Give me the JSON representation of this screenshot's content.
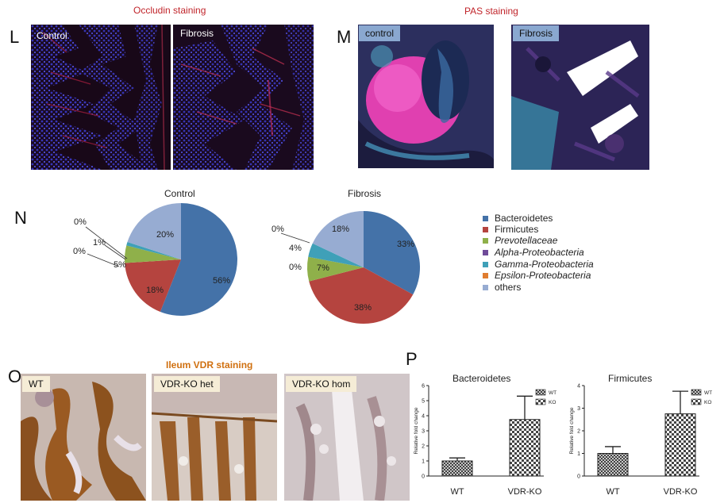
{
  "panel_L": {
    "letter": "L",
    "title": "Occludin staining",
    "images": [
      {
        "label": "Control"
      },
      {
        "label": "Fibrosis"
      }
    ]
  },
  "panel_M": {
    "letter": "M",
    "title": "PAS staining",
    "images": [
      {
        "label": "control"
      },
      {
        "label": "Fibrosis"
      }
    ]
  },
  "panel_N": {
    "letter": "N",
    "colors": {
      "Bacteroidetes": "#4472a8",
      "Firmicutes": "#b5443f",
      "Prevotellaceae": "#8fb04a",
      "Alpha-Proteobacteria": "#6f4b99",
      "Gamma-Proteobacteria": "#3fa0b8",
      "Epsilon-Proteobacteria": "#e07d30",
      "others": "#97acd2"
    },
    "legend": [
      {
        "name": "Bacteroidetes",
        "italic": false
      },
      {
        "name": "Firmicutes",
        "italic": false
      },
      {
        "name": "Prevotellaceae",
        "italic": true
      },
      {
        "name": "Alpha-Proteobacteria",
        "italic": true
      },
      {
        "name": "Gamma-Proteobacteria",
        "italic": true
      },
      {
        "name": "Epsilon-Proteobacteria",
        "italic": true
      },
      {
        "name": "others",
        "italic": false
      }
    ]
  },
  "panel_O": {
    "letter": "O",
    "title": "Ileum VDR staining",
    "images": [
      {
        "label": "WT"
      },
      {
        "label": "VDR-KO het"
      },
      {
        "label": "VDR-KO hom"
      }
    ]
  },
  "panel_P": {
    "letter": "P"
  },
  "chart_data": [
    {
      "type": "pie",
      "title": "Control",
      "categories": [
        "Bacteroidetes",
        "Firmicutes",
        "Prevotellaceae",
        "Alpha-Proteobacteria",
        "Gamma-Proteobacteria",
        "Epsilon-Proteobacteria",
        "others"
      ],
      "values": [
        56,
        18,
        5,
        0,
        1,
        0,
        20
      ],
      "labels": [
        "56%",
        "18%",
        "5%",
        "0%",
        "1%",
        "0%",
        "20%"
      ]
    },
    {
      "type": "pie",
      "title": "Fibrosis",
      "categories": [
        "Bacteroidetes",
        "Firmicutes",
        "Prevotellaceae",
        "Alpha-Proteobacteria",
        "Gamma-Proteobacteria",
        "Epsilon-Proteobacteria",
        "others"
      ],
      "values": [
        33,
        38,
        7,
        0,
        4,
        0,
        18
      ],
      "labels": [
        "33%",
        "38%",
        "7%",
        "0%",
        "4%",
        "0%",
        "18%"
      ]
    },
    {
      "type": "bar",
      "title": "Bacteroidetes",
      "categories": [
        "WT",
        "VDR-KO"
      ],
      "values": [
        1.0,
        3.75
      ],
      "error": [
        0.2,
        1.55
      ],
      "ylabel": "Relative fold change",
      "ylim": [
        0,
        6
      ],
      "yticks": [
        "0",
        "1",
        "2",
        "3",
        "4",
        "5",
        "6"
      ],
      "legend": [
        "WT",
        "KO"
      ]
    },
    {
      "type": "bar",
      "title": "Firmicutes",
      "categories": [
        "WT",
        "VDR-KO"
      ],
      "values": [
        1.0,
        2.75
      ],
      "error": [
        0.3,
        1.0
      ],
      "ylabel": "Relative fold change",
      "ylim": [
        0,
        4
      ],
      "yticks": [
        "0",
        "1",
        "2",
        "3",
        "4"
      ],
      "legend": [
        "WT",
        "KO"
      ]
    }
  ]
}
